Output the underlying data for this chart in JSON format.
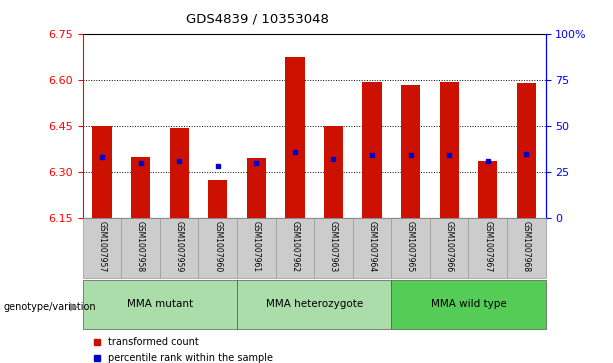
{
  "title": "GDS4839 / 10353048",
  "samples": [
    "GSM1007957",
    "GSM1007958",
    "GSM1007959",
    "GSM1007960",
    "GSM1007961",
    "GSM1007962",
    "GSM1007963",
    "GSM1007964",
    "GSM1007965",
    "GSM1007966",
    "GSM1007967",
    "GSM1007968"
  ],
  "transformed_count": [
    6.45,
    6.35,
    6.445,
    6.275,
    6.345,
    6.675,
    6.45,
    6.595,
    6.585,
    6.595,
    6.335,
    6.59
  ],
  "percentile_rank": [
    33,
    30,
    31,
    28,
    30,
    36,
    32,
    34,
    34,
    34,
    31,
    35
  ],
  "ylim_left": [
    6.15,
    6.75
  ],
  "ylim_right": [
    0,
    100
  ],
  "yticks_left": [
    6.15,
    6.3,
    6.45,
    6.6,
    6.75
  ],
  "yticks_right": [
    0,
    25,
    50,
    75,
    100
  ],
  "bar_color": "#cc1100",
  "marker_color": "#0000cc",
  "bar_bottom": 6.15,
  "legend_label_red": "transformed count",
  "legend_label_blue": "percentile rank within the sample",
  "genotype_label": "genotype/variation",
  "group_defs": [
    {
      "label": "MMA mutant",
      "start": 0,
      "end": 3,
      "color": "#aaddaa"
    },
    {
      "label": "MMA heterozygote",
      "start": 4,
      "end": 7,
      "color": "#aaddaa"
    },
    {
      "label": "MMA wild type",
      "start": 8,
      "end": 11,
      "color": "#55cc55"
    }
  ]
}
